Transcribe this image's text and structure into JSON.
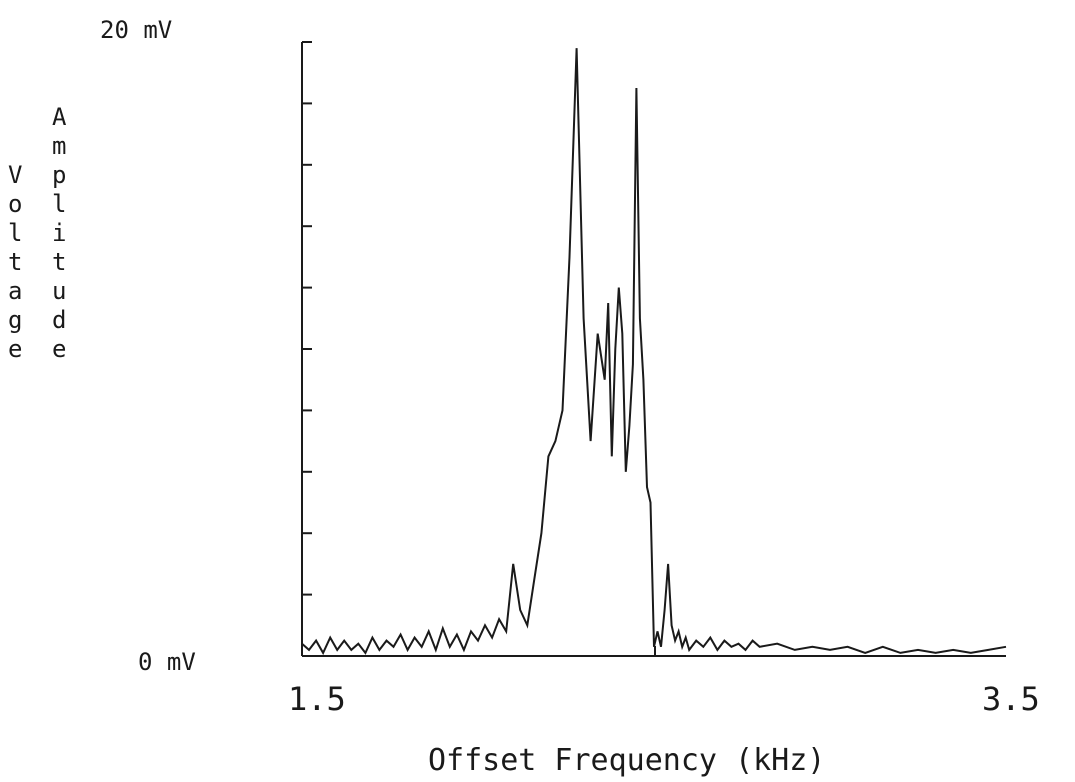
{
  "chart_data": {
    "type": "line",
    "title": "",
    "xlabel": "Offset Frequency (kHz)",
    "ylabel_left": "Voltage",
    "ylabel_right": "Amplitude",
    "y_top_label": "20 mV",
    "y_bottom_label": "0 mV",
    "x_min_label": "1.5",
    "x_max_label": "3.5",
    "xlim": [
      1.5,
      3.5
    ],
    "ylim": [
      0,
      20
    ],
    "grid": false,
    "series": [
      {
        "x": [
          1.5,
          1.52,
          1.54,
          1.56,
          1.58,
          1.6,
          1.62,
          1.64,
          1.66,
          1.68,
          1.7,
          1.72,
          1.74,
          1.76,
          1.78,
          1.8,
          1.82,
          1.84,
          1.86,
          1.88,
          1.9,
          1.92,
          1.94,
          1.96,
          1.98,
          2.0,
          2.02,
          2.04,
          2.06,
          2.08,
          2.1,
          2.12,
          2.14,
          2.16,
          2.18,
          2.2,
          2.22,
          2.24,
          2.26,
          2.28,
          2.3,
          2.32,
          2.34,
          2.36,
          2.37,
          2.38,
          2.39,
          2.4,
          2.41,
          2.42,
          2.43,
          2.44,
          2.45,
          2.46,
          2.47,
          2.48,
          2.49,
          2.5,
          2.51,
          2.52,
          2.53,
          2.54,
          2.55,
          2.56,
          2.57,
          2.58,
          2.59,
          2.6,
          2.62,
          2.64,
          2.66,
          2.68,
          2.7,
          2.72,
          2.74,
          2.76,
          2.78,
          2.8,
          2.85,
          2.9,
          2.95,
          3.0,
          3.05,
          3.1,
          3.15,
          3.2,
          3.25,
          3.3,
          3.35,
          3.4,
          3.45,
          3.5
        ],
        "y": [
          0.4,
          0.2,
          0.5,
          0.1,
          0.6,
          0.2,
          0.5,
          0.2,
          0.4,
          0.1,
          0.6,
          0.2,
          0.5,
          0.3,
          0.7,
          0.2,
          0.6,
          0.3,
          0.8,
          0.2,
          0.9,
          0.3,
          0.7,
          0.2,
          0.8,
          0.5,
          1.0,
          0.6,
          1.2,
          0.8,
          3.0,
          1.5,
          1.0,
          2.5,
          4.0,
          6.5,
          7.0,
          8.0,
          13.0,
          19.8,
          11.0,
          7.0,
          10.5,
          9.0,
          11.5,
          6.5,
          10.0,
          12.0,
          10.5,
          6.0,
          7.5,
          9.5,
          18.5,
          11.0,
          9.0,
          5.5,
          5.0,
          0.3,
          0.8,
          0.3,
          1.5,
          3.0,
          1.0,
          0.5,
          0.8,
          0.3,
          0.6,
          0.2,
          0.5,
          0.3,
          0.6,
          0.2,
          0.5,
          0.3,
          0.4,
          0.2,
          0.5,
          0.3,
          0.4,
          0.2,
          0.3,
          0.2,
          0.3,
          0.1,
          0.3,
          0.1,
          0.2,
          0.1,
          0.2,
          0.1,
          0.2,
          0.3
        ]
      }
    ]
  }
}
